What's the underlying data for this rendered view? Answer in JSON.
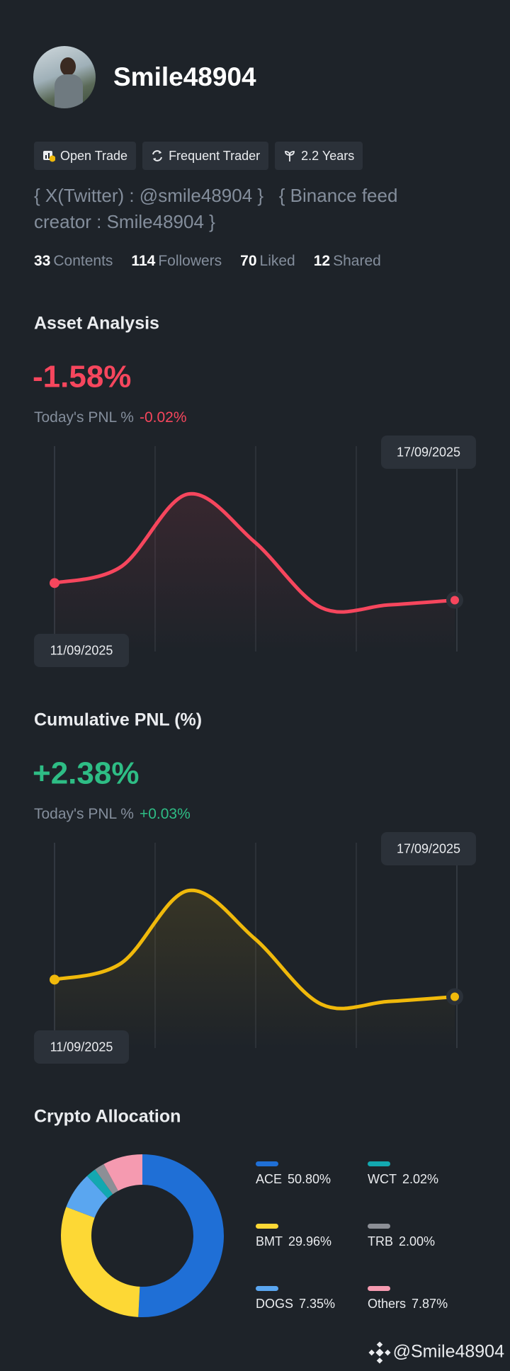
{
  "profile": {
    "name": "Smile48904",
    "tags": [
      "Open Trade",
      "Frequent Trader",
      "2.2 Years"
    ],
    "bio": "{ X(Twitter) : @smile48904 }   { Binance feed creator : Smile48904 }",
    "stats": [
      {
        "count": 33,
        "label": "Contents"
      },
      {
        "count": 114,
        "label": "Followers"
      },
      {
        "count": 70,
        "label": "Liked"
      },
      {
        "count": 12,
        "label": "Shared"
      }
    ]
  },
  "chart_data": [
    {
      "type": "line",
      "title": "Asset Analysis",
      "headline": "-1.58%",
      "subtitle": "Today's PNL %",
      "subtitle_value": "-0.02%",
      "accent": "#f6465d",
      "categories": [
        "11/09/2025",
        null,
        null,
        null,
        null,
        null,
        "17/09/2025"
      ],
      "series": [
        {
          "color": "#f6465d",
          "values": [
            0,
            0.24,
            1.3,
            0.6,
            -0.36,
            -0.32,
            -0.25
          ]
        }
      ],
      "ylim": [
        -1,
        2
      ]
    },
    {
      "type": "line",
      "title": "Cumulative PNL (%)",
      "headline": "+2.38%",
      "subtitle": "Today's PNL %",
      "subtitle_value": "+0.03%",
      "accent": "#2ebd85",
      "categories": [
        "11/09/2025",
        null,
        null,
        null,
        null,
        null,
        "17/09/2025"
      ],
      "series": [
        {
          "color": "#f0b90b",
          "values": [
            0,
            0.24,
            1.3,
            0.6,
            -0.36,
            -0.32,
            -0.25
          ]
        }
      ],
      "ylim": [
        -1,
        2
      ]
    },
    {
      "type": "pie",
      "title": "Crypto Allocation",
      "categories": [
        "ACE",
        "BMT",
        "DOGS",
        "WCT",
        "TRB",
        "Others"
      ],
      "values": [
        50.8,
        29.96,
        7.35,
        2.02,
        2.0,
        7.87
      ],
      "value_labels": [
        "50.80%",
        "29.96%",
        "7.35%",
        "2.02%",
        "2.00%",
        "7.87%"
      ],
      "colors": [
        "#1f6fd6",
        "#fdd835",
        "#5aa6f0",
        "#13a8b0",
        "#8c8f96",
        "#f59ab0"
      ]
    }
  ],
  "footer": "@Smile48904"
}
